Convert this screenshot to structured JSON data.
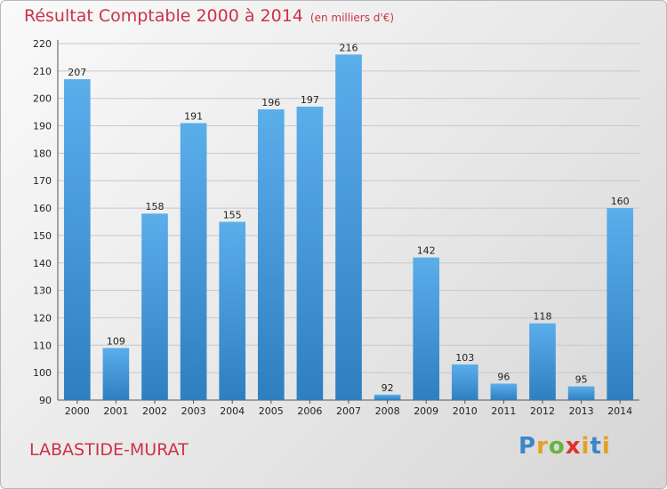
{
  "header": {
    "title": "Résultat Comptable 2000 à 2014",
    "unit": "(en milliers d'€)"
  },
  "footer": {
    "location": "LABASTIDE-MURAT",
    "logo": "Proxiti"
  },
  "colors": {
    "title": "#cc3344",
    "bar_light": "#5aaeea",
    "bar_dark": "#2f7fc0"
  },
  "chart_data": {
    "type": "bar",
    "title": "Résultat Comptable 2000 à 2014",
    "subtitle": "(en milliers d'€)",
    "xlabel": "",
    "ylabel": "",
    "categories": [
      "2000",
      "2001",
      "2002",
      "2003",
      "2004",
      "2005",
      "2006",
      "2007",
      "2008",
      "2009",
      "2010",
      "2011",
      "2012",
      "2013",
      "2014"
    ],
    "values": [
      207,
      109,
      158,
      191,
      155,
      196,
      197,
      216,
      92,
      142,
      103,
      96,
      118,
      95,
      160
    ],
    "ylim": [
      90,
      220
    ],
    "yticks": [
      90,
      100,
      110,
      120,
      130,
      140,
      150,
      160,
      170,
      180,
      190,
      200,
      210,
      220
    ],
    "grid": true,
    "legend": "none"
  }
}
